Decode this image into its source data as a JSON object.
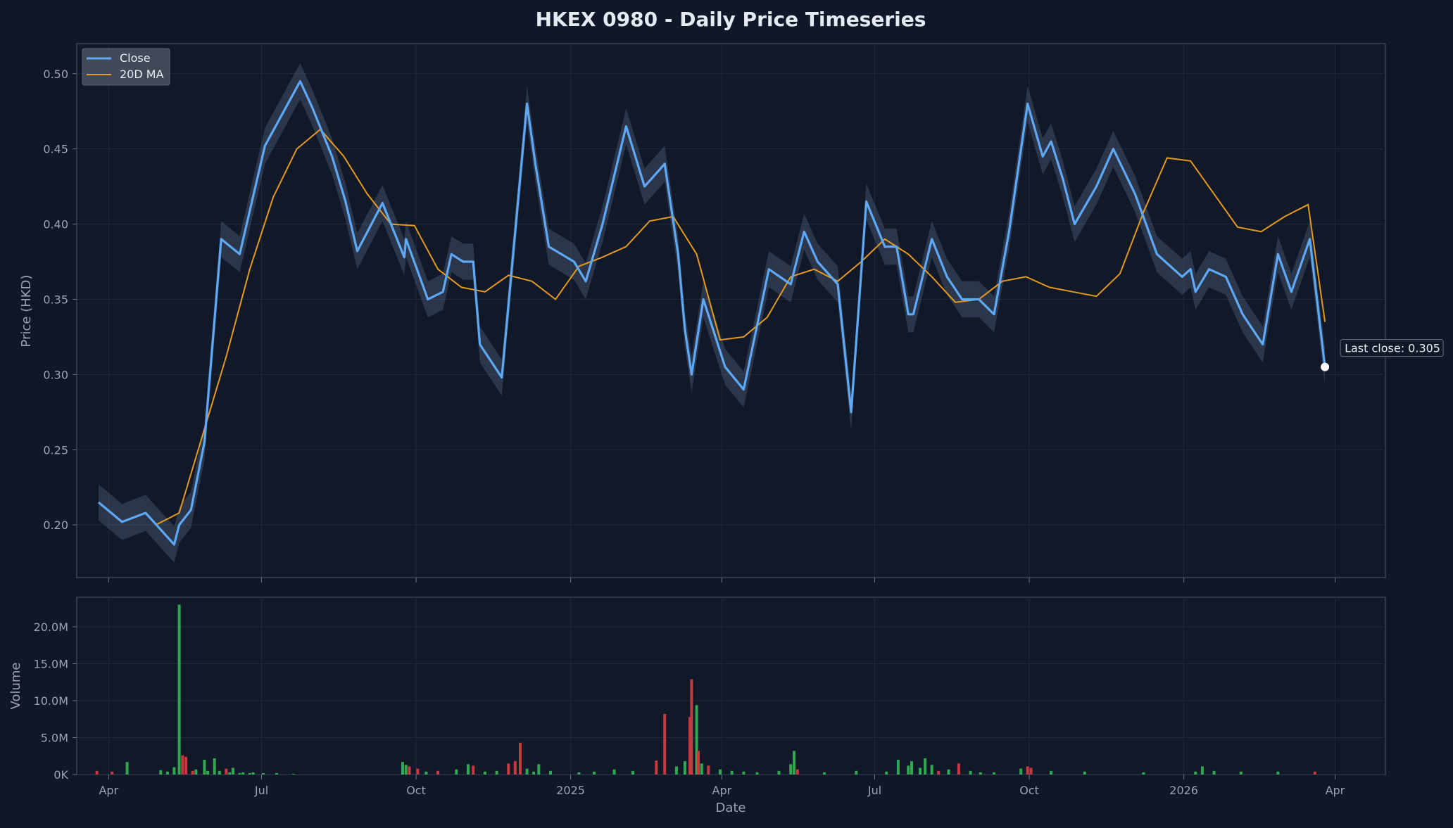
{
  "title": "HKEX 0980 - Daily Price Timeseries",
  "colors": {
    "background": "#0f1729",
    "panel": "#111827",
    "close": "#5ea8f5",
    "ma": "#e39a1e",
    "band": "#6f86a8",
    "up": "#2fa84f",
    "down": "#c8393f",
    "grid": "#1e2a3d",
    "text": "#9aa4b5"
  },
  "chart_data": {
    "type": "line",
    "title": "HKEX 0980 - Daily Price Timeseries",
    "xlabel": "Date",
    "legend": {
      "position": "top-left",
      "entries": [
        "Close",
        "20D MA"
      ]
    },
    "grid": true,
    "annotation": {
      "text": "Last close: 0.305",
      "date": "2026-03-26",
      "value": 0.305
    },
    "price_panel": {
      "ylabel": "Price (HKD)",
      "ylim": [
        0.165,
        0.52
      ],
      "yticks": [
        0.2,
        0.25,
        0.3,
        0.35,
        0.4,
        0.45,
        0.5
      ],
      "ytick_labels": [
        "0.20",
        "0.25",
        "0.30",
        "0.35",
        "0.40",
        "0.45",
        "0.50"
      ]
    },
    "volume_panel": {
      "ylabel": "Volume",
      "ylim": [
        0,
        24000000
      ],
      "yticks": [
        0,
        5000000,
        10000000,
        15000000,
        20000000
      ],
      "ytick_labels": [
        "0K",
        "5.0M",
        "10.0M",
        "15.0M",
        "20.0M"
      ]
    },
    "xlim": [
      "2024-03-13",
      "2026-05-01"
    ],
    "xticks": [
      "2024-04-01",
      "2024-07-01",
      "2024-10-01",
      "2025-01-01",
      "2025-04-01",
      "2025-07-01",
      "2025-10-01",
      "2026-01-01",
      "2026-04-01"
    ],
    "xtick_labels": [
      "Apr",
      "Jul",
      "Oct",
      "2025",
      "Apr",
      "Jul",
      "Oct",
      "2026",
      "Apr"
    ],
    "series": [
      {
        "name": "Close",
        "x": [
          "2024-03-26",
          "2024-04-09",
          "2024-04-23",
          "2024-05-10",
          "2024-05-13",
          "2024-05-20",
          "2024-05-28",
          "2024-06-07",
          "2024-06-18",
          "2024-07-03",
          "2024-07-24",
          "2024-07-31",
          "2024-08-12",
          "2024-08-20",
          "2024-08-27",
          "2024-09-11",
          "2024-09-24",
          "2024-09-25",
          "2024-10-08",
          "2024-10-17",
          "2024-10-22",
          "2024-10-29",
          "2024-11-04",
          "2024-11-08",
          "2024-11-21",
          "2024-12-06",
          "2024-12-11",
          "2024-12-19",
          "2025-01-03",
          "2025-01-10",
          "2025-01-20",
          "2025-02-03",
          "2025-02-14",
          "2025-02-26",
          "2025-03-06",
          "2025-03-10",
          "2025-03-14",
          "2025-03-21",
          "2025-04-03",
          "2025-04-14",
          "2025-04-29",
          "2025-05-12",
          "2025-05-20",
          "2025-05-28",
          "2025-06-09",
          "2025-06-17",
          "2025-06-26",
          "2025-07-07",
          "2025-07-14",
          "2025-07-21",
          "2025-07-24",
          "2025-08-04",
          "2025-08-13",
          "2025-08-22",
          "2025-09-01",
          "2025-09-10",
          "2025-09-19",
          "2025-09-30",
          "2025-10-09",
          "2025-10-14",
          "2025-10-21",
          "2025-10-28",
          "2025-11-10",
          "2025-11-20",
          "2025-12-03",
          "2025-12-16",
          "2025-12-31",
          "2026-01-05",
          "2026-01-08",
          "2026-01-16",
          "2026-01-26",
          "2026-02-05",
          "2026-02-17",
          "2026-02-26",
          "2026-03-06",
          "2026-03-17",
          "2026-03-26"
        ],
        "values": [
          0.215,
          0.202,
          0.208,
          0.187,
          0.2,
          0.21,
          0.255,
          0.39,
          0.38,
          0.452,
          0.495,
          0.478,
          0.445,
          0.415,
          0.382,
          0.414,
          0.378,
          0.39,
          0.35,
          0.355,
          0.38,
          0.375,
          0.375,
          0.32,
          0.298,
          0.48,
          0.44,
          0.385,
          0.375,
          0.362,
          0.4,
          0.465,
          0.425,
          0.44,
          0.38,
          0.33,
          0.3,
          0.35,
          0.305,
          0.29,
          0.37,
          0.36,
          0.395,
          0.375,
          0.36,
          0.275,
          0.415,
          0.385,
          0.385,
          0.34,
          0.34,
          0.39,
          0.365,
          0.35,
          0.35,
          0.34,
          0.395,
          0.48,
          0.445,
          0.455,
          0.43,
          0.4,
          0.425,
          0.45,
          0.42,
          0.38,
          0.365,
          0.37,
          0.355,
          0.37,
          0.365,
          0.34,
          0.32,
          0.38,
          0.355,
          0.39,
          0.305
        ]
      },
      {
        "name": "20D MA",
        "x": [
          "2024-04-29",
          "2024-05-13",
          "2024-05-27",
          "2024-06-10",
          "2024-06-24",
          "2024-07-08",
          "2024-07-22",
          "2024-08-05",
          "2024-08-19",
          "2024-09-02",
          "2024-09-16",
          "2024-09-30",
          "2024-10-14",
          "2024-10-28",
          "2024-11-11",
          "2024-11-25",
          "2024-12-09",
          "2024-12-23",
          "2025-01-06",
          "2025-01-20",
          "2025-02-03",
          "2025-02-17",
          "2025-03-03",
          "2025-03-17",
          "2025-03-31",
          "2025-04-14",
          "2025-04-28",
          "2025-05-12",
          "2025-05-26",
          "2025-06-09",
          "2025-06-23",
          "2025-07-07",
          "2025-07-21",
          "2025-08-04",
          "2025-08-18",
          "2025-09-01",
          "2025-09-15",
          "2025-09-29",
          "2025-10-13",
          "2025-10-27",
          "2025-11-10",
          "2025-11-24",
          "2025-12-08",
          "2025-12-22",
          "2026-01-05",
          "2026-01-19",
          "2026-02-02",
          "2026-02-16",
          "2026-03-02",
          "2026-03-16",
          "2026-03-26"
        ],
        "values": [
          0.2,
          0.208,
          0.26,
          0.312,
          0.37,
          0.418,
          0.45,
          0.463,
          0.445,
          0.42,
          0.4,
          0.399,
          0.37,
          0.358,
          0.355,
          0.366,
          0.362,
          0.35,
          0.372,
          0.378,
          0.385,
          0.402,
          0.405,
          0.38,
          0.323,
          0.325,
          0.338,
          0.365,
          0.37,
          0.362,
          0.375,
          0.39,
          0.38,
          0.365,
          0.348,
          0.35,
          0.362,
          0.365,
          0.358,
          0.355,
          0.352,
          0.367,
          0.408,
          0.444,
          0.442,
          0.42,
          0.398,
          0.395,
          0.405,
          0.413,
          0.335
        ]
      }
    ],
    "volume": {
      "x": [
        "2024-03-25",
        "2024-04-03",
        "2024-04-12",
        "2024-05-02",
        "2024-05-06",
        "2024-05-10",
        "2024-05-13",
        "2024-05-15",
        "2024-05-17",
        "2024-05-21",
        "2024-05-23",
        "2024-05-28",
        "2024-05-30",
        "2024-06-03",
        "2024-06-06",
        "2024-06-10",
        "2024-06-12",
        "2024-06-14",
        "2024-06-18",
        "2024-06-20",
        "2024-06-24",
        "2024-06-26",
        "2024-07-02",
        "2024-07-10",
        "2024-07-20",
        "2024-09-23",
        "2024-09-25",
        "2024-09-27",
        "2024-10-02",
        "2024-10-07",
        "2024-10-14",
        "2024-10-25",
        "2024-11-01",
        "2024-11-04",
        "2024-11-11",
        "2024-11-18",
        "2024-11-25",
        "2024-11-29",
        "2024-12-02",
        "2024-12-06",
        "2024-12-10",
        "2024-12-13",
        "2024-12-20",
        "2025-01-06",
        "2025-01-15",
        "2025-01-27",
        "2025-02-07",
        "2025-02-21",
        "2025-02-26",
        "2025-03-05",
        "2025-03-10",
        "2025-03-13",
        "2025-03-14",
        "2025-03-17",
        "2025-03-18",
        "2025-03-20",
        "2025-03-24",
        "2025-03-31",
        "2025-04-07",
        "2025-04-14",
        "2025-04-22",
        "2025-05-05",
        "2025-05-12",
        "2025-05-14",
        "2025-05-16",
        "2025-06-01",
        "2025-06-20",
        "2025-07-08",
        "2025-07-15",
        "2025-07-21",
        "2025-07-23",
        "2025-07-28",
        "2025-07-31",
        "2025-08-04",
        "2025-08-08",
        "2025-08-14",
        "2025-08-20",
        "2025-08-27",
        "2025-09-02",
        "2025-09-10",
        "2025-09-26",
        "2025-09-30",
        "2025-10-02",
        "2025-10-14",
        "2025-11-03",
        "2025-12-08",
        "2026-01-08",
        "2026-01-12",
        "2026-01-19",
        "2026-02-04",
        "2026-02-26",
        "2026-03-20"
      ],
      "values": [
        500000,
        400000,
        1700000,
        600000,
        400000,
        1000000,
        23000000,
        2600000,
        2400000,
        500000,
        700000,
        2000000,
        500000,
        2200000,
        500000,
        800000,
        300000,
        900000,
        200000,
        300000,
        200000,
        300000,
        200000,
        200000,
        100000,
        1700000,
        1300000,
        1100000,
        800000,
        400000,
        500000,
        700000,
        1400000,
        1200000,
        400000,
        500000,
        1500000,
        1800000,
        4300000,
        800000,
        400000,
        1400000,
        500000,
        300000,
        400000,
        700000,
        500000,
        1900000,
        8200000,
        1100000,
        1800000,
        7800000,
        12900000,
        9400000,
        3200000,
        1500000,
        1200000,
        700000,
        500000,
        400000,
        300000,
        500000,
        1400000,
        3200000,
        700000,
        300000,
        500000,
        400000,
        2000000,
        1200000,
        1800000,
        900000,
        2200000,
        1300000,
        500000,
        700000,
        1500000,
        500000,
        300000,
        300000,
        800000,
        1100000,
        900000,
        500000,
        400000,
        300000,
        400000,
        1100000,
        500000,
        400000,
        400000,
        400000
      ],
      "direction": [
        "down",
        "down",
        "up",
        "up",
        "up",
        "up",
        "up",
        "down",
        "down",
        "down",
        "up",
        "up",
        "up",
        "up",
        "up",
        "down",
        "up",
        "up",
        "up",
        "up",
        "up",
        "up",
        "up",
        "up",
        "up",
        "up",
        "up",
        "down",
        "down",
        "up",
        "down",
        "up",
        "up",
        "down",
        "up",
        "up",
        "down",
        "down",
        "down",
        "up",
        "up",
        "up",
        "up",
        "up",
        "up",
        "up",
        "up",
        "down",
        "down",
        "up",
        "up",
        "down",
        "down",
        "up",
        "down",
        "up",
        "down",
        "up",
        "up",
        "up",
        "up",
        "up",
        "up",
        "up",
        "down",
        "up",
        "up",
        "up",
        "up",
        "up",
        "up",
        "up",
        "up",
        "up",
        "down",
        "up",
        "down",
        "up",
        "up",
        "up",
        "up",
        "down",
        "down",
        "up",
        "up",
        "up",
        "up",
        "up",
        "up",
        "up",
        "up",
        "down"
      ]
    }
  }
}
